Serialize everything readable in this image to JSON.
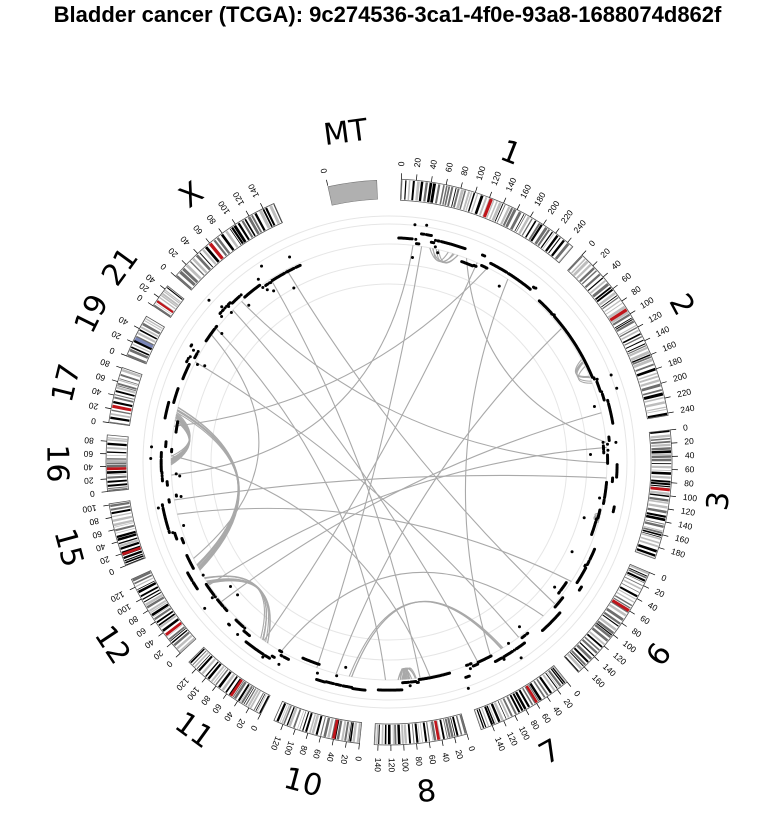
{
  "title": "Bladder cancer (TCGA): 9c274536-3ca1-4f0e-93a8-1688074d862f",
  "colors": {
    "background": "#ffffff",
    "band_dark": "#000000",
    "band_mid": "#6e6e6e",
    "band_light": "#bdbdbd",
    "centromere": "#c0151b",
    "variable_region": "#7a86b8",
    "link": "#a9a9a9",
    "dot": "#000000",
    "mt_block": "#b0b0b0",
    "track_grid": "#e6e6e6"
  },
  "chromosomes": [
    {
      "name": "1",
      "ticks": [
        "0",
        "20",
        "40",
        "60",
        "80",
        "100",
        "120",
        "140",
        "160",
        "180",
        "200",
        "220",
        "240"
      ]
    },
    {
      "name": "2",
      "ticks": [
        "0",
        "20",
        "40",
        "60",
        "80",
        "100",
        "120",
        "140",
        "160",
        "180",
        "200",
        "220",
        "240"
      ]
    },
    {
      "name": "3",
      "ticks": [
        "0",
        "20",
        "40",
        "60",
        "80",
        "100",
        "120",
        "140",
        "160",
        "180"
      ]
    },
    {
      "name": "6",
      "ticks": [
        "0",
        "20",
        "40",
        "60",
        "80",
        "100",
        "120",
        "140",
        "160"
      ]
    },
    {
      "name": "7",
      "ticks": [
        "0",
        "20",
        "40",
        "60",
        "80",
        "100",
        "120",
        "140"
      ]
    },
    {
      "name": "8",
      "ticks": [
        "0",
        "20",
        "40",
        "60",
        "80",
        "100",
        "120",
        "140"
      ]
    },
    {
      "name": "10",
      "ticks": [
        "0",
        "20",
        "40",
        "60",
        "80",
        "100",
        "120"
      ]
    },
    {
      "name": "11",
      "ticks": [
        "0",
        "20",
        "40",
        "60",
        "80",
        "100",
        "120"
      ]
    },
    {
      "name": "12",
      "ticks": [
        "0",
        "20",
        "40",
        "60",
        "80",
        "100",
        "120"
      ]
    },
    {
      "name": "15",
      "ticks": [
        "0",
        "20",
        "40",
        "60",
        "80",
        "100"
      ]
    },
    {
      "name": "16",
      "ticks": [
        "0",
        "20",
        "40",
        "60",
        "80"
      ]
    },
    {
      "name": "17",
      "ticks": [
        "0",
        "20",
        "40",
        "60",
        "80"
      ]
    },
    {
      "name": "19",
      "ticks": [
        "0",
        "20",
        "40"
      ]
    },
    {
      "name": "21",
      "ticks": [
        "0",
        "20",
        "40"
      ]
    },
    {
      "name": "X",
      "ticks": [
        "0",
        "20",
        "40",
        "60",
        "80",
        "100",
        "120",
        "140"
      ]
    },
    {
      "name": "MT",
      "ticks": [
        "0"
      ]
    }
  ]
}
